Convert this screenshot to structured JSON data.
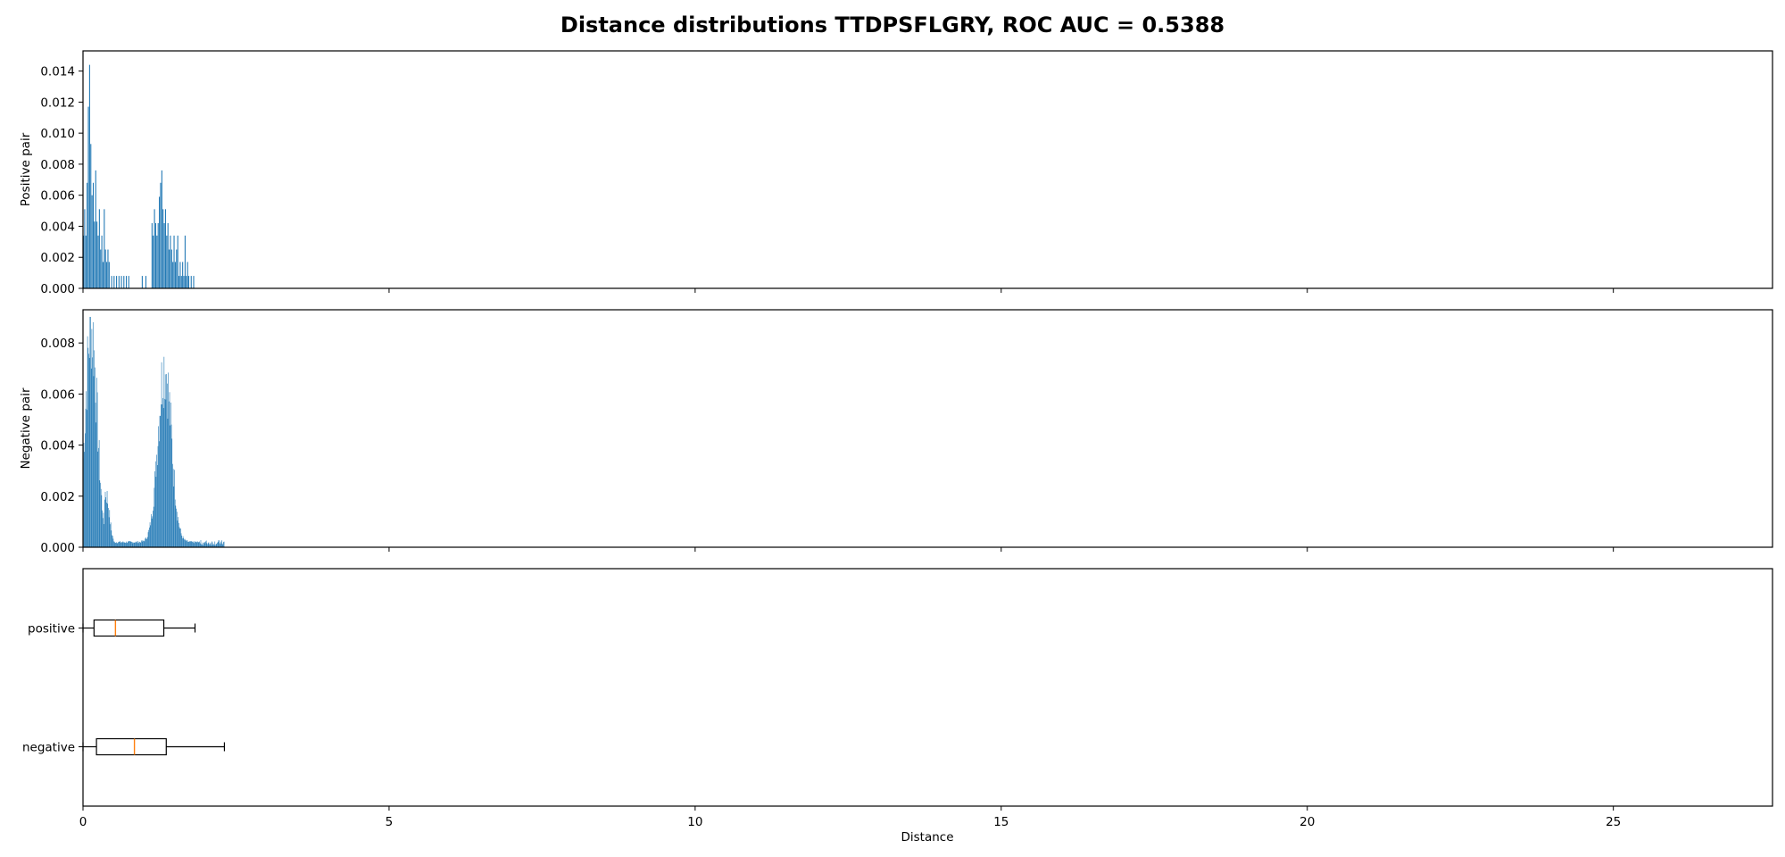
{
  "chart_data": {
    "title": "Distance distributions TTDPSFLGRY, ROC AUC = 0.5388",
    "xlabel": "Distance",
    "xlim": [
      0,
      27.6
    ],
    "xticks": [
      0,
      5,
      10,
      15,
      20,
      25
    ],
    "xtick_labels": [
      "0",
      "5",
      "10",
      "15",
      "20",
      "25"
    ],
    "bar_color": "#1f77b4",
    "median_color": "#ff7f0e",
    "panels": [
      {
        "type": "bar",
        "ylabel": "Positive pair",
        "ylim": [
          0,
          0.0153
        ],
        "yticks": [
          0,
          0.002,
          0.004,
          0.006,
          0.008,
          0.01,
          0.012,
          0.014
        ],
        "ytick_labels": [
          "0.000",
          "0.002",
          "0.004",
          "0.006",
          "0.008",
          "0.010",
          "0.012",
          "0.014"
        ],
        "bin_width": 0.02,
        "bins": [
          [
            0.0,
            0.0034
          ],
          [
            0.02,
            0.0051
          ],
          [
            0.04,
            0.0034
          ],
          [
            0.06,
            0.0068
          ],
          [
            0.08,
            0.0117
          ],
          [
            0.1,
            0.0144
          ],
          [
            0.12,
            0.0093
          ],
          [
            0.14,
            0.006
          ],
          [
            0.16,
            0.0068
          ],
          [
            0.18,
            0.0043
          ],
          [
            0.2,
            0.0076
          ],
          [
            0.22,
            0.0043
          ],
          [
            0.24,
            0.0034
          ],
          [
            0.26,
            0.0051
          ],
          [
            0.28,
            0.0025
          ],
          [
            0.3,
            0.0034
          ],
          [
            0.32,
            0.0017
          ],
          [
            0.34,
            0.0051
          ],
          [
            0.36,
            0.0025
          ],
          [
            0.38,
            0.0017
          ],
          [
            0.4,
            0.0025
          ],
          [
            0.42,
            0.0017
          ],
          [
            0.46,
            0.0008
          ],
          [
            0.5,
            0.0008
          ],
          [
            0.54,
            0.0008
          ],
          [
            0.58,
            0.0008
          ],
          [
            0.62,
            0.0008
          ],
          [
            0.66,
            0.0008
          ],
          [
            0.7,
            0.0008
          ],
          [
            0.74,
            0.0008
          ],
          [
            0.96,
            0.0008
          ],
          [
            1.02,
            0.0008
          ],
          [
            1.12,
            0.0042
          ],
          [
            1.14,
            0.0034
          ],
          [
            1.16,
            0.0051
          ],
          [
            1.18,
            0.0042
          ],
          [
            1.2,
            0.0034
          ],
          [
            1.22,
            0.0042
          ],
          [
            1.24,
            0.0059
          ],
          [
            1.26,
            0.0068
          ],
          [
            1.28,
            0.0076
          ],
          [
            1.3,
            0.0051
          ],
          [
            1.32,
            0.0042
          ],
          [
            1.34,
            0.0051
          ],
          [
            1.36,
            0.0034
          ],
          [
            1.38,
            0.0042
          ],
          [
            1.4,
            0.0025
          ],
          [
            1.42,
            0.0034
          ],
          [
            1.44,
            0.0025
          ],
          [
            1.46,
            0.0017
          ],
          [
            1.48,
            0.0034
          ],
          [
            1.5,
            0.0017
          ],
          [
            1.52,
            0.0025
          ],
          [
            1.54,
            0.0034
          ],
          [
            1.56,
            0.0008
          ],
          [
            1.58,
            0.0017
          ],
          [
            1.6,
            0.0008
          ],
          [
            1.62,
            0.0017
          ],
          [
            1.64,
            0.0008
          ],
          [
            1.66,
            0.0034
          ],
          [
            1.68,
            0.0008
          ],
          [
            1.7,
            0.0017
          ],
          [
            1.72,
            0.0008
          ],
          [
            1.76,
            0.0008
          ],
          [
            1.8,
            0.0008
          ]
        ]
      },
      {
        "type": "bar",
        "ylabel": "Negative pair",
        "ylim": [
          0,
          0.0093
        ],
        "yticks": [
          0,
          0.002,
          0.004,
          0.006,
          0.008
        ],
        "ytick_labels": [
          "0.000",
          "0.002",
          "0.004",
          "0.006",
          "0.008"
        ],
        "bin_width": 0.01,
        "peaks": [
          {
            "center": 0.13,
            "sigma": 0.095,
            "amp": 0.0084
          },
          {
            "center": 1.33,
            "sigma": 0.11,
            "amp": 0.0069
          }
        ],
        "baseline": 0.0002,
        "extent": [
          0.0,
          2.3
        ]
      },
      {
        "type": "boxplot",
        "categories": [
          "positive",
          "negative"
        ],
        "boxes": [
          {
            "name": "positive",
            "whisker_low": 0.0,
            "q1": 0.18,
            "median": 0.53,
            "q3": 1.32,
            "whisker_high": 1.83
          },
          {
            "name": "negative",
            "whisker_low": 0.0,
            "q1": 0.22,
            "median": 0.84,
            "q3": 1.36,
            "whisker_high": 2.31
          }
        ]
      }
    ]
  }
}
